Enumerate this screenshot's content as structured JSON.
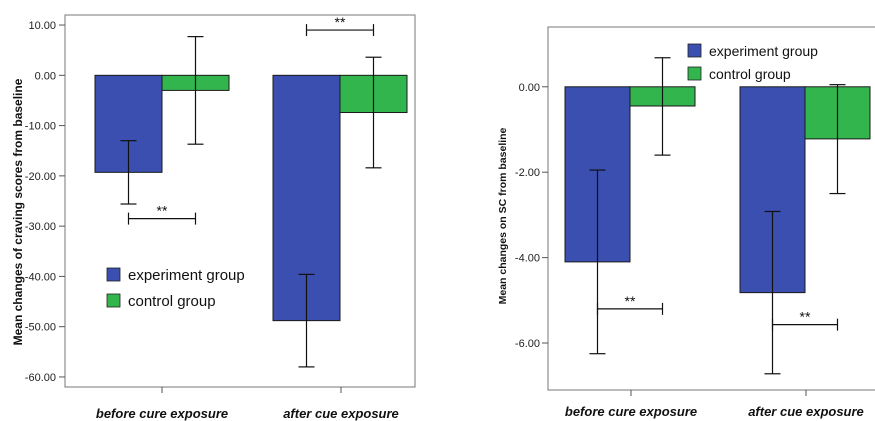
{
  "chart_data": [
    {
      "type": "bar",
      "categories": [
        "before cure exposure",
        "after cue exposure"
      ],
      "series": [
        {
          "name": "experiment group",
          "values": [
            -19.3,
            -48.8
          ],
          "err_low": [
            -25.6,
            -58.0
          ],
          "err_high": [
            -13.0,
            -39.6
          ],
          "color": "#3a4fb0"
        },
        {
          "name": "control group",
          "values": [
            -3.0,
            -7.4
          ],
          "err_low": [
            -13.7,
            -18.4
          ],
          "err_high": [
            7.7,
            3.6
          ],
          "color": "#33b54d"
        }
      ],
      "ylabel": "Mean changes of craving scores from baseline",
      "xlabel": "",
      "title": "",
      "ylim": [
        -62,
        12
      ],
      "yticks": [
        "10.00",
        "0.00",
        "-10.00",
        "-20.00",
        "-30.00",
        "-40.00",
        "-50.00",
        "-60.00"
      ],
      "legend": "lower-left",
      "significance": [
        {
          "label": "**",
          "y": -28.5,
          "from": [
            0,
            0
          ],
          "to": [
            0,
            1
          ]
        },
        {
          "label": "**",
          "y": 9.0,
          "from": [
            1,
            0
          ],
          "to": [
            1,
            1
          ]
        }
      ]
    },
    {
      "type": "bar",
      "categories": [
        "before cure exposure",
        "after cue exposure"
      ],
      "series": [
        {
          "name": "experiment group",
          "values": [
            -4.1,
            -4.82
          ],
          "err_low": [
            -6.25,
            -6.72
          ],
          "err_high": [
            -1.95,
            -2.92
          ],
          "color": "#3a4fb0"
        },
        {
          "name": "control group",
          "values": [
            -0.45,
            -1.22
          ],
          "err_low": [
            -1.6,
            -2.5
          ],
          "err_high": [
            0.68,
            0.05
          ],
          "color": "#33b54d"
        }
      ],
      "ylabel": "Mean changes on SC from baseline",
      "xlabel": "",
      "title": "",
      "ylim": [
        -7.1,
        1.4
      ],
      "yticks": [
        "0.00",
        "-2.00",
        "-4.00",
        "-6.00"
      ],
      "legend": "top-right",
      "significance": [
        {
          "label": "**",
          "y": -5.2,
          "from": [
            0,
            0
          ],
          "to": [
            0,
            1
          ]
        },
        {
          "label": "**",
          "y": -5.57,
          "from": [
            1,
            0
          ],
          "to": [
            1,
            1
          ]
        }
      ]
    }
  ]
}
